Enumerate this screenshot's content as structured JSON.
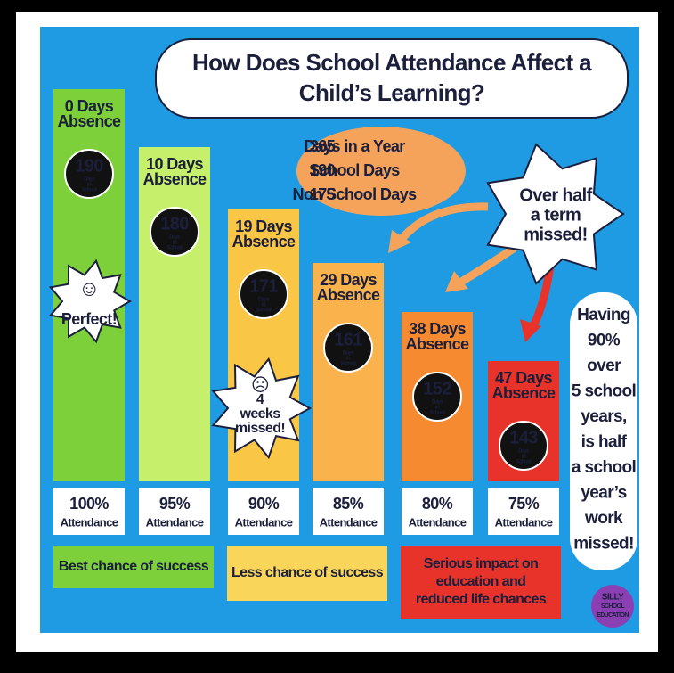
{
  "title": [
    "How Does School Attendance Affect a",
    "Child’s Learning?"
  ],
  "year_facts": [
    {
      "number": "365",
      "text": "Days in a Year"
    },
    {
      "number": "190",
      "text": "School Days"
    },
    {
      "number": "175",
      "text": "Non School Days"
    }
  ],
  "columns": [
    {
      "absence": [
        "0 Days",
        "Absence"
      ],
      "days": "190",
      "days_label": [
        "Days",
        "in",
        "School"
      ],
      "percent": "100%",
      "attendance": "Attendance"
    },
    {
      "absence": [
        "10 Days",
        "Absence"
      ],
      "days": "180",
      "days_label": [
        "Days",
        "in",
        "School"
      ],
      "percent": "95%",
      "attendance": "Attendance"
    },
    {
      "absence": [
        "19 Days",
        "Absence"
      ],
      "days": "171",
      "days_label": [
        "Days",
        "in",
        "School"
      ],
      "percent": "90%",
      "attendance": "Attendance"
    },
    {
      "absence": [
        "29 Days",
        "Absence"
      ],
      "days": "161",
      "days_label": [
        "Days",
        "in",
        "School"
      ],
      "percent": "85%",
      "attendance": "Attendance"
    },
    {
      "absence": [
        "38 Days",
        "Absence"
      ],
      "days": "152",
      "days_label": [
        "Days",
        "in",
        "School"
      ],
      "percent": "80%",
      "attendance": "Attendance"
    },
    {
      "absence": [
        "47 Days",
        "Absence"
      ],
      "days": "143",
      "days_label": [
        "Days",
        "in",
        "School"
      ],
      "percent": "75%",
      "attendance": "Attendance"
    }
  ],
  "callouts": {
    "perfect": [
      "☺",
      "Perfect!"
    ],
    "four_weeks": [
      "☹",
      "4",
      "weeks",
      "missed!"
    ],
    "half_term": [
      "Over half",
      "a term",
      "missed!"
    ]
  },
  "outcomes": [
    [
      "Best chance of success"
    ],
    [
      "Less chance of success"
    ],
    [
      "Serious impact on",
      "education and",
      "reduced life chances"
    ]
  ],
  "side_note": [
    "Having",
    "90%",
    "over",
    "5 school",
    "years,",
    "is half",
    "a school",
    "year’s",
    "work",
    "missed!"
  ],
  "logo": [
    "SILLY",
    "SCHOOL",
    "EDUCATION"
  ]
}
